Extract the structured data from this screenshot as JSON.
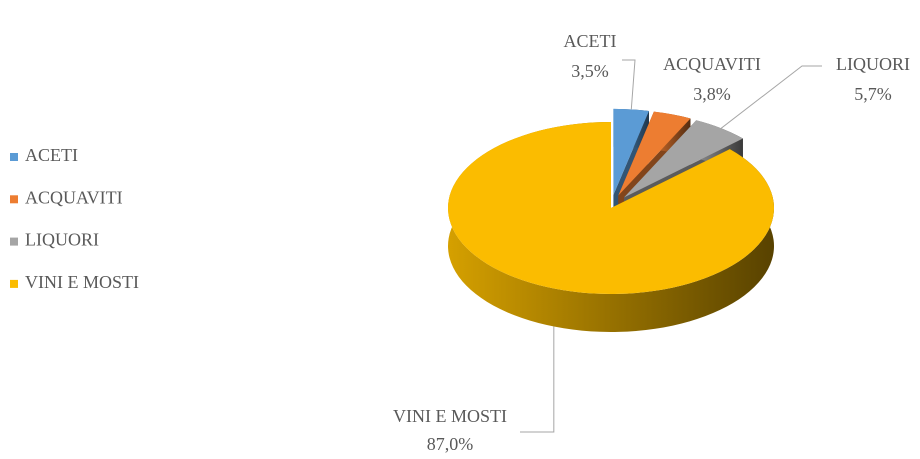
{
  "chart_data": {
    "type": "pie",
    "categories": [
      "ACETI",
      "ACQUAVITI",
      "LIQUORI",
      "VINI E MOSTI"
    ],
    "values": [
      3.5,
      3.8,
      5.7,
      87.0
    ],
    "value_labels": [
      "3,5%",
      "3,8%",
      "5,7%",
      "87,0%"
    ],
    "colors": [
      "#5b9bd5",
      "#ed7d31",
      "#a5a5a5",
      "#fbbc00"
    ],
    "legend": "left",
    "exploded": [
      true,
      true,
      true,
      false
    ]
  }
}
